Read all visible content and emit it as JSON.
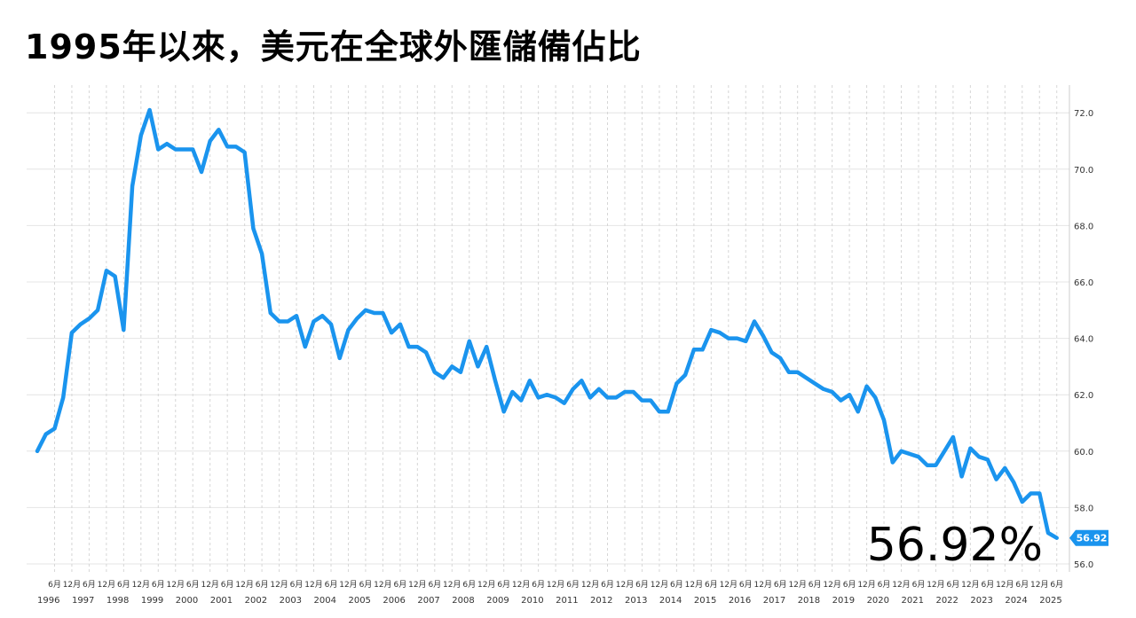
{
  "title": "1995年以來，美元在全球外匯儲備佔比",
  "chart_data": {
    "type": "line",
    "title": "1995年以來，美元在全球外匯儲備佔比",
    "xlabel": "",
    "ylabel": "",
    "ylim": [
      56,
      73
    ],
    "y_ticks": [
      "56.0",
      "58.0",
      "60.0",
      "62.0",
      "64.0",
      "66.0",
      "68.0",
      "70.0",
      "72.0"
    ],
    "x_month_labels": [
      "6月",
      "12月"
    ],
    "x_year_labels": [
      "1996",
      "1997",
      "1998",
      "1999",
      "2000",
      "2001",
      "2002",
      "2003",
      "2004",
      "2005",
      "2006",
      "2007",
      "2008",
      "2009",
      "2010",
      "2011",
      "2012",
      "2013",
      "2014",
      "2015",
      "2016",
      "2017",
      "2018",
      "2019",
      "2020",
      "2021",
      "2022",
      "2023",
      "2024",
      "2025"
    ],
    "grid": true,
    "line_color": "#1a94ee",
    "last_value_label": "56.92",
    "big_value_label": "56.92%",
    "series": [
      {
        "x": [
          "1995-12",
          "1996-03",
          "1996-06",
          "1996-09",
          "1996-12",
          "1997-03",
          "1997-06",
          "1997-09",
          "1997-12",
          "1998-03",
          "1998-06",
          "1998-09",
          "1998-12",
          "1999-03",
          "1999-06",
          "1999-09",
          "1999-12",
          "2000-03",
          "2000-06",
          "2000-09",
          "2000-12",
          "2001-03",
          "2001-06",
          "2001-09",
          "2001-12",
          "2002-03",
          "2002-06",
          "2002-09",
          "2002-12",
          "2003-03",
          "2003-06",
          "2003-09",
          "2003-12",
          "2004-03",
          "2004-06",
          "2004-09",
          "2004-12",
          "2005-03",
          "2005-06",
          "2005-09",
          "2005-12",
          "2006-03",
          "2006-06",
          "2006-09",
          "2006-12",
          "2007-03",
          "2007-06",
          "2007-09",
          "2007-12",
          "2008-03",
          "2008-06",
          "2008-09",
          "2008-12",
          "2009-03",
          "2009-06",
          "2009-09",
          "2009-12",
          "2010-03",
          "2010-06",
          "2010-09",
          "2010-12",
          "2011-03",
          "2011-06",
          "2011-09",
          "2011-12",
          "2012-03",
          "2012-06",
          "2012-09",
          "2012-12",
          "2013-03",
          "2013-06",
          "2013-09",
          "2013-12",
          "2014-03",
          "2014-06",
          "2014-09",
          "2014-12",
          "2015-03",
          "2015-06",
          "2015-09",
          "2015-12",
          "2016-03",
          "2016-06",
          "2016-09",
          "2016-12",
          "2017-03",
          "2017-06",
          "2017-09",
          "2017-12",
          "2018-03",
          "2018-06",
          "2018-09",
          "2018-12",
          "2019-03",
          "2019-06",
          "2019-09",
          "2019-12",
          "2020-03",
          "2020-06",
          "2020-09",
          "2020-12",
          "2021-03",
          "2021-06",
          "2021-09",
          "2021-12",
          "2022-03",
          "2022-06",
          "2022-09",
          "2022-12",
          "2023-03",
          "2023-06",
          "2023-09",
          "2023-12",
          "2024-03",
          "2024-06",
          "2024-09",
          "2024-12",
          "2025-03",
          "2025-06"
        ],
        "values": [
          60.0,
          60.6,
          60.8,
          61.9,
          64.2,
          64.5,
          64.7,
          65.0,
          66.4,
          66.2,
          64.3,
          69.4,
          71.2,
          72.1,
          70.7,
          70.9,
          70.7,
          70.7,
          70.7,
          69.9,
          71.0,
          71.4,
          70.8,
          70.8,
          70.6,
          67.9,
          67.0,
          64.9,
          64.6,
          64.6,
          64.8,
          63.7,
          64.6,
          64.8,
          64.5,
          63.3,
          64.3,
          64.7,
          65.0,
          64.9,
          64.9,
          64.2,
          64.5,
          63.7,
          63.7,
          63.5,
          62.8,
          62.6,
          63.0,
          62.8,
          63.9,
          63.0,
          63.7,
          62.5,
          61.4,
          62.1,
          61.8,
          62.5,
          61.9,
          62.0,
          61.9,
          61.7,
          62.2,
          62.5,
          61.9,
          62.2,
          61.9,
          61.9,
          62.1,
          62.1,
          61.8,
          61.8,
          61.4,
          61.4,
          62.4,
          62.7,
          63.6,
          63.6,
          64.3,
          64.2,
          64.0,
          64.0,
          63.9,
          64.6,
          64.1,
          63.5,
          63.3,
          62.8,
          62.8,
          62.6,
          62.4,
          62.2,
          62.1,
          61.8,
          62.0,
          61.4,
          62.3,
          61.9,
          61.1,
          59.6,
          60.0,
          59.9,
          59.8,
          59.5,
          59.5,
          60.0,
          60.5,
          59.1,
          60.1,
          59.8,
          59.7,
          59.0,
          59.4,
          58.9,
          58.2,
          58.5,
          58.5,
          57.1,
          56.92
        ]
      }
    ]
  }
}
